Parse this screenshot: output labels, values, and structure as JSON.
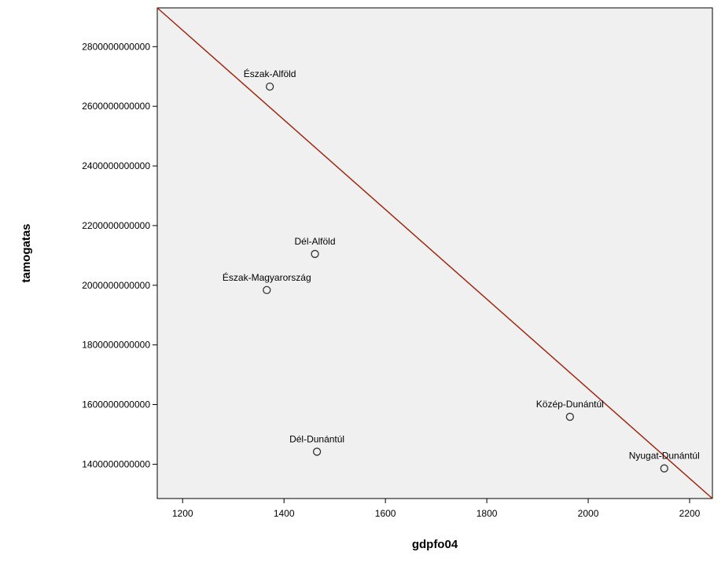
{
  "chart_data": {
    "type": "scatter",
    "xlabel": "gdpfo04",
    "ylabel": "tamogatas",
    "xlim": [
      1150,
      2245
    ],
    "ylim": [
      1285000000000,
      2930000000000
    ],
    "x_ticks": [
      1200,
      1400,
      1600,
      1800,
      2000,
      2200
    ],
    "y_ticks": [
      1400000000000,
      1600000000000,
      1800000000000,
      2000000000000,
      2200000000000,
      2400000000000,
      2600000000000,
      2800000000000
    ],
    "x_tick_labels": [
      "1200",
      "1400",
      "1600",
      "1800",
      "2000",
      "2200"
    ],
    "y_tick_labels": [
      "1400000000000",
      "1600000000000",
      "1800000000000",
      "2000000000000",
      "2200000000000",
      "2400000000000",
      "2600000000000",
      "2800000000000"
    ],
    "grid": false,
    "points": [
      {
        "label": "Észak-Alföld",
        "x": 1372,
        "y": 2666000000000
      },
      {
        "label": "Dél-Alföld",
        "x": 1461,
        "y": 2105000000000
      },
      {
        "label": "Észak-Magyarország",
        "x": 1366,
        "y": 1984000000000
      },
      {
        "label": "Dél-Dunántúl",
        "x": 1465,
        "y": 1442000000000
      },
      {
        "label": "Közép-Dunántúl",
        "x": 1964,
        "y": 1559000000000
      },
      {
        "label": "Nyugat-Dunántúl",
        "x": 2150,
        "y": 1386000000000
      }
    ],
    "fit_line": {
      "x": [
        1150,
        2245
      ],
      "y": [
        2930000000000,
        1285000000000
      ]
    },
    "colors": {
      "plot_bg": "#f0f0f0",
      "fit_line": "#9e2a14",
      "marker_edge": "#333333",
      "page_bg": "#eef2de"
    }
  }
}
